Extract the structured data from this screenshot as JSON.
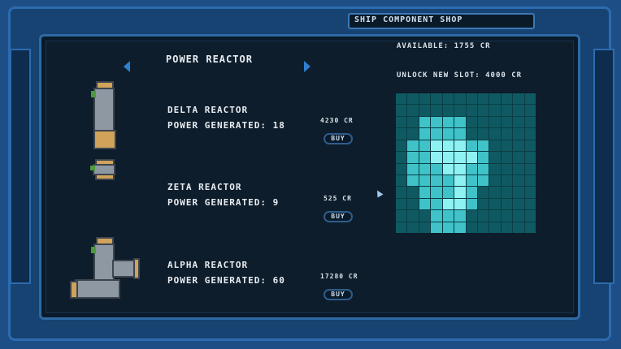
{
  "window": {
    "title": "SHIP COMPONENT SHOP"
  },
  "header": {
    "category": "POWER REACTOR",
    "available": "AVAILABLE: 1755 CR",
    "unlock": "UNLOCK NEW SLOT: 4000 CR"
  },
  "items": [
    {
      "name": "DELTA REACTOR",
      "stat": "POWER GENERATED: 18",
      "price": "4230 CR",
      "buy": "BUY",
      "icon": "delta-reactor-icon"
    },
    {
      "name": "ZETA REACTOR",
      "stat": "POWER GENERATED: 9",
      "price": "525 CR",
      "buy": "BUY",
      "icon": "zeta-reactor-icon"
    },
    {
      "name": "ALPHA REACTOR",
      "stat": "POWER GENERATED: 60",
      "price": "17280 CR",
      "buy": "BUY",
      "icon": "alpha-reactor-icon"
    }
  ],
  "colors": {
    "frame": "#1d4f86",
    "panel": "#0e1d2b",
    "grid": "#0f5a62",
    "grid_lit": "#3fc3c9",
    "grid_hot": "#8ff2f2",
    "accent": "#2f7fd0"
  },
  "slot_grid": {
    "rows": 12,
    "cols": 12,
    "lit_cells": [
      [
        2,
        2
      ],
      [
        2,
        3
      ],
      [
        2,
        4
      ],
      [
        2,
        5
      ],
      [
        3,
        2
      ],
      [
        3,
        3
      ],
      [
        3,
        4
      ],
      [
        3,
        5
      ],
      [
        4,
        1
      ],
      [
        4,
        2
      ],
      [
        4,
        3
      ],
      [
        4,
        4
      ],
      [
        4,
        5
      ],
      [
        4,
        6
      ],
      [
        4,
        7
      ],
      [
        5,
        1
      ],
      [
        5,
        2
      ],
      [
        5,
        3
      ],
      [
        5,
        4
      ],
      [
        5,
        5
      ],
      [
        5,
        6
      ],
      [
        5,
        7
      ],
      [
        6,
        1
      ],
      [
        6,
        2
      ],
      [
        6,
        3
      ],
      [
        6,
        4
      ],
      [
        6,
        5
      ],
      [
        6,
        6
      ],
      [
        6,
        7
      ],
      [
        7,
        1
      ],
      [
        7,
        2
      ],
      [
        7,
        3
      ],
      [
        7,
        4
      ],
      [
        7,
        5
      ],
      [
        7,
        6
      ],
      [
        7,
        7
      ],
      [
        8,
        2
      ],
      [
        8,
        3
      ],
      [
        8,
        4
      ],
      [
        8,
        5
      ],
      [
        8,
        6
      ],
      [
        9,
        2
      ],
      [
        9,
        3
      ],
      [
        9,
        4
      ],
      [
        9,
        5
      ],
      [
        9,
        6
      ],
      [
        10,
        3
      ],
      [
        10,
        4
      ],
      [
        10,
        5
      ],
      [
        11,
        3
      ],
      [
        11,
        4
      ],
      [
        11,
        5
      ]
    ],
    "hot_cells": [
      [
        4,
        3
      ],
      [
        4,
        4
      ],
      [
        4,
        5
      ],
      [
        5,
        3
      ],
      [
        5,
        4
      ],
      [
        5,
        5
      ],
      [
        5,
        6
      ],
      [
        6,
        4
      ],
      [
        6,
        5
      ],
      [
        7,
        5
      ],
      [
        8,
        5
      ],
      [
        9,
        4
      ],
      [
        9,
        5
      ]
    ]
  }
}
